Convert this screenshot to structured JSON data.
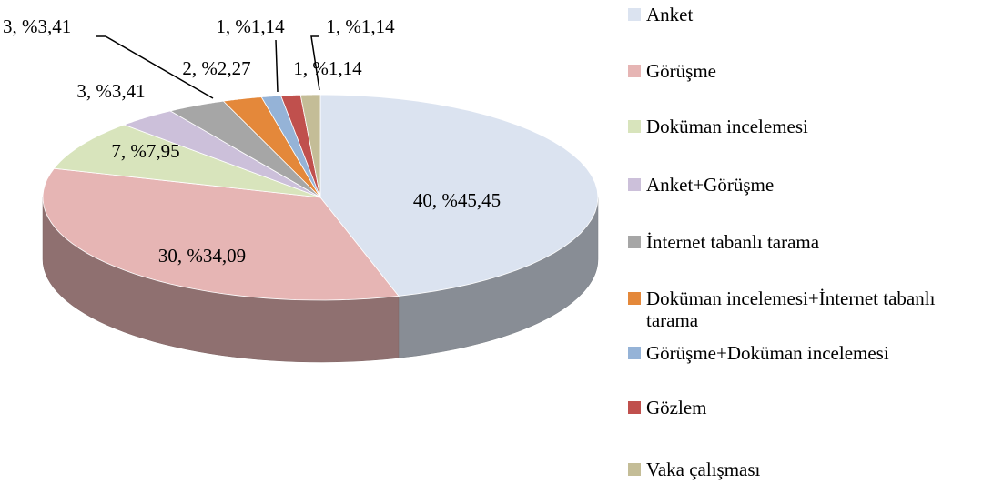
{
  "chart_data": {
    "type": "pie",
    "pie_3d": true,
    "categories": [
      "Anket",
      "Görüşme",
      "Doküman incelemesi",
      "Anket+Görüşme",
      "İnternet tabanlı tarama",
      "Doküman incelemesi+İnternet tabanlı tarama",
      "Görüşme+Doküman incelemesi",
      "Gözlem",
      "Vaka çalışması"
    ],
    "values": [
      40,
      30,
      7,
      3,
      3,
      2,
      1,
      1,
      1
    ],
    "value_labels": [
      "40, %45,45",
      "30, %34,09",
      "7, %7,95",
      "3, %3,41",
      "3, %3,41",
      "2, %2,27",
      "1, %1,14",
      "1, %1,14",
      "1, %1,14"
    ],
    "colors": [
      "#dbe3f0",
      "#e6b5b4",
      "#d8e4bc",
      "#ccc0da",
      "#a6a6a6",
      "#e4883a",
      "#95b3d7",
      "#c0504d",
      "#c4bd97"
    ],
    "legend": "right"
  }
}
